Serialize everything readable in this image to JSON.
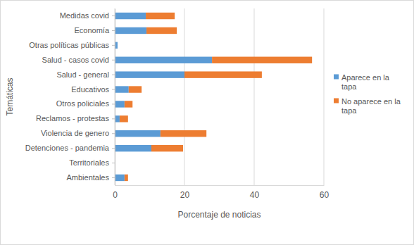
{
  "chart_data": {
    "type": "bar",
    "orientation": "horizontal",
    "stacked": true,
    "grid": true,
    "legend": "right",
    "x_label": "Porcentaje de noticias",
    "y_label": "Temáticas",
    "categories": [
      "Medidas covid",
      "Economía",
      "Otras políticas públicas",
      "Salud - casos covid",
      "Salud - general",
      "Educativos",
      "Otros policiales",
      "Reclamos - protestas",
      "Violencia de genero",
      "Detenciones - pandemia",
      "Territoriales",
      "Ambientales"
    ],
    "series": [
      {
        "name": "Aparece en la tapa",
        "color": "#5b9bd5",
        "values": [
          8.9,
          9.1,
          0.8,
          27.9,
          20.0,
          4.0,
          2.8,
          1.4,
          13.1,
          10.5,
          0.2,
          2.8
        ]
      },
      {
        "name": "No aparece en la tapa",
        "color": "#ed7d31",
        "values": [
          8.3,
          8.7,
          0,
          28.7,
          22.2,
          3.7,
          2.3,
          2.4,
          13.2,
          9.1,
          0,
          1.0
        ]
      }
    ],
    "xlim": [
      0,
      60
    ],
    "xticks": [
      0,
      20,
      40,
      60
    ]
  }
}
